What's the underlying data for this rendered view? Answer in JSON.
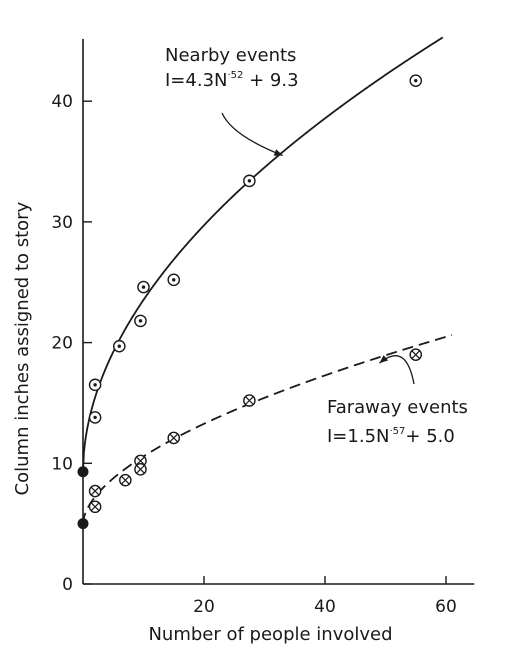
{
  "chart_data": {
    "type": "scatter",
    "title": "",
    "xlabel": "Number of people involved",
    "ylabel": "Column inches assigned to story",
    "xlim": [
      0,
      65
    ],
    "ylim": [
      0,
      45
    ],
    "x_ticks": [
      20,
      40,
      60
    ],
    "y_ticks": [
      0,
      10,
      20,
      30,
      40
    ],
    "grid": false,
    "legend": "none",
    "series": [
      {
        "name": "Nearby events",
        "marker": "circle-dot",
        "points": [
          [
            2,
            16.5
          ],
          [
            2,
            13.8
          ],
          [
            6,
            19.7
          ],
          [
            9.5,
            21.8
          ],
          [
            10,
            24.6
          ],
          [
            15,
            25.2
          ],
          [
            27.5,
            33.4
          ],
          [
            55,
            41.7
          ]
        ],
        "fit": {
          "equation": "I = 4.3N^.52 + 9.3",
          "a": 4.3,
          "b": 0.52,
          "c": 9.3,
          "style": "solid"
        }
      },
      {
        "name": "Faraway events",
        "marker": "circle-x",
        "points": [
          [
            2,
            7.7
          ],
          [
            2,
            6.4
          ],
          [
            7,
            8.6
          ],
          [
            9.5,
            10.2
          ],
          [
            9.5,
            9.5
          ],
          [
            15,
            12.1
          ],
          [
            27.5,
            15.2
          ],
          [
            55,
            19
          ]
        ],
        "fit": {
          "equation": "I = 1.5N^.57 + 5.0",
          "a": 1.5,
          "b": 0.57,
          "c": 5.0,
          "style": "dashed"
        }
      }
    ],
    "intercept_points": [
      [
        0,
        9.3
      ],
      [
        0,
        5.0
      ]
    ],
    "annotations": [
      {
        "series": 0,
        "label": "Nearby events",
        "eq_base": "I=4.3N",
        "eq_exp": "·52",
        "eq_tail": " + 9.3",
        "arrow_to": [
          33,
          35.5
        ]
      },
      {
        "series": 1,
        "label": "Faraway events",
        "eq_base": "I=1.5N",
        "eq_exp": "·57",
        "eq_tail": "+ 5.0",
        "arrow_to": [
          49,
          18.3
        ]
      }
    ],
    "colors": {
      "ink": "#1a1a1a"
    }
  }
}
